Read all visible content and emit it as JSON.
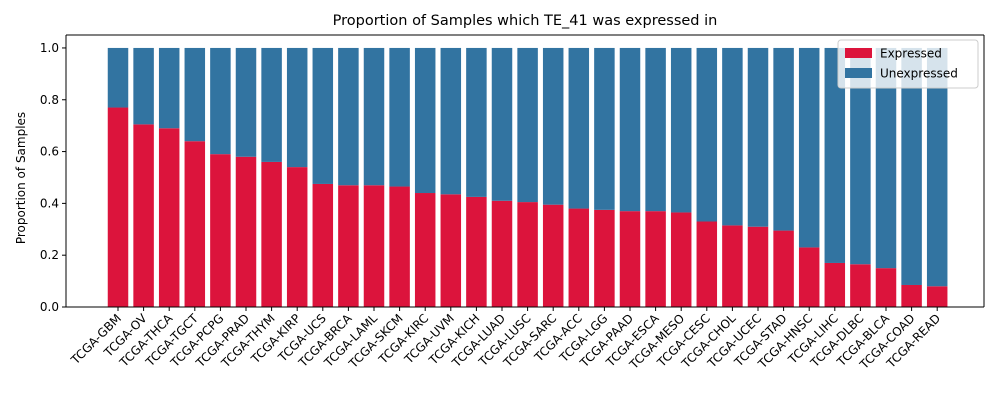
{
  "chart_data": {
    "type": "bar",
    "stacked": true,
    "title": "Proportion of Samples which TE_41 was expressed in",
    "xlabel": "",
    "ylabel": "Proportion of Samples",
    "ylim": [
      0,
      1.05
    ],
    "yticks": [
      "0.0",
      "0.2",
      "0.4",
      "0.6",
      "0.8",
      "1.0"
    ],
    "ytick_values": [
      0,
      0.2,
      0.4,
      0.6,
      0.8,
      1.0
    ],
    "grid": false,
    "legend_position": "top-right",
    "categories": [
      "TCGA-GBM",
      "TCGA-OV",
      "TCGA-THCA",
      "TCGA-TGCT",
      "TCGA-PCPG",
      "TCGA-PRAD",
      "TCGA-THYM",
      "TCGA-KIRP",
      "TCGA-UCS",
      "TCGA-BRCA",
      "TCGA-LAML",
      "TCGA-SKCM",
      "TCGA-KIRC",
      "TCGA-UVM",
      "TCGA-KICH",
      "TCGA-LUAD",
      "TCGA-LUSC",
      "TCGA-SARC",
      "TCGA-ACC",
      "TCGA-LGG",
      "TCGA-PAAD",
      "TCGA-ESCA",
      "TCGA-MESO",
      "TCGA-CESC",
      "TCGA-CHOL",
      "TCGA-UCEC",
      "TCGA-STAD",
      "TCGA-HNSC",
      "TCGA-LIHC",
      "TCGA-DLBC",
      "TCGA-BLCA",
      "TCGA-COAD",
      "TCGA-READ"
    ],
    "series": [
      {
        "name": "Expressed",
        "color": "#dc143c",
        "values": [
          0.77,
          0.705,
          0.69,
          0.64,
          0.59,
          0.58,
          0.56,
          0.54,
          0.475,
          0.47,
          0.47,
          0.465,
          0.44,
          0.435,
          0.425,
          0.41,
          0.405,
          0.395,
          0.38,
          0.375,
          0.37,
          0.37,
          0.365,
          0.33,
          0.315,
          0.31,
          0.295,
          0.23,
          0.17,
          0.165,
          0.15,
          0.085,
          0.08
        ]
      },
      {
        "name": "Unexpressed",
        "color": "#3274a1",
        "values": [
          0.23,
          0.295,
          0.31,
          0.36,
          0.41,
          0.42,
          0.44,
          0.46,
          0.525,
          0.53,
          0.53,
          0.535,
          0.56,
          0.565,
          0.575,
          0.59,
          0.595,
          0.605,
          0.62,
          0.625,
          0.63,
          0.63,
          0.635,
          0.67,
          0.685,
          0.69,
          0.705,
          0.77,
          0.83,
          0.835,
          0.85,
          0.915,
          0.92
        ]
      }
    ]
  }
}
